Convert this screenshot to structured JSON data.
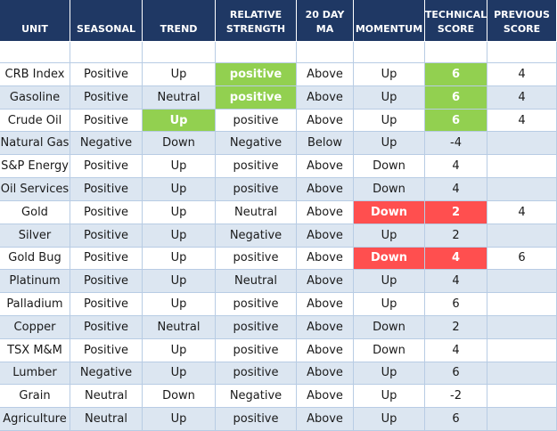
{
  "table": {
    "header": [
      "UNIT",
      "SEASONAL",
      "TREND",
      "RELATIVE STRENGTH",
      "20 DAY MA",
      "MOMENTUM",
      "TECHNICAL SCORE",
      "PREVIOUS SCORE"
    ],
    "header_color": "#1f3864",
    "stripe_color": "#dce6f1",
    "rows": [
      [
        "CRB Index",
        "Positive",
        "Up",
        {
          "text": "positive",
          "fill": "#92d050"
        },
        "Above",
        "Up",
        {
          "text": 6,
          "fill": "#92d050"
        },
        4
      ],
      [
        "Gasoline",
        "Positive",
        "Neutral",
        {
          "text": "positive",
          "fill": "#92d050"
        },
        "Above",
        "Up",
        {
          "text": 6,
          "fill": "#92d050"
        },
        4
      ],
      [
        "Crude Oil",
        "Positive",
        {
          "text": "Up",
          "fill": "#92d050"
        },
        "positive",
        "Above",
        "Up",
        {
          "text": 6,
          "fill": "#92d050"
        },
        4
      ],
      [
        "Natural Gas",
        "Negative",
        "Down",
        "Negative",
        "Below",
        "Up",
        -4
      ],
      [
        "S&P Energy",
        "Positive",
        "Up",
        "positive",
        "Above",
        "Down",
        4
      ],
      [
        "Oil Services",
        "Positive",
        "Up",
        "positive",
        "Above",
        "Down",
        4
      ],
      [
        "Gold",
        "Positive",
        "Up",
        "Neutral",
        "Above",
        {
          "text": "Down",
          "fill": "#ff4f4f"
        },
        {
          "text": 2,
          "fill": "#ff4f4f"
        },
        4
      ],
      [
        "Silver",
        "Positive",
        "Up",
        "Negative",
        "Above",
        "Up",
        2
      ],
      [
        "Gold Bug",
        "Positive",
        "Up",
        "positive",
        "Above",
        {
          "text": "Down",
          "fill": "#ff4f4f"
        },
        {
          "text": 4,
          "fill": "#ff4f4f"
        },
        6
      ],
      [
        "Platinum",
        "Positive",
        "Up",
        "Neutral",
        "Above",
        "Up",
        4
      ],
      [
        "Palladium",
        "Positive",
        "Up",
        "positive",
        "Above",
        "Up",
        6
      ],
      [
        "Copper",
        "Positive",
        "Neutral",
        "positive",
        "Above",
        "Down",
        2
      ],
      [
        "TSX M&M",
        "Positive",
        "Up",
        "positive",
        "Above",
        "Down",
        4
      ],
      [
        "Lumber",
        "Negative",
        "Up",
        "positive",
        "Above",
        "Up",
        6
      ],
      [
        "Grain",
        "Neutral",
        "Down",
        "Negative",
        "Above",
        "Up",
        -2
      ],
      [
        "Agriculture",
        "Neutral",
        "Up",
        "positive",
        "Above",
        "Up",
        6
      ]
    ]
  }
}
